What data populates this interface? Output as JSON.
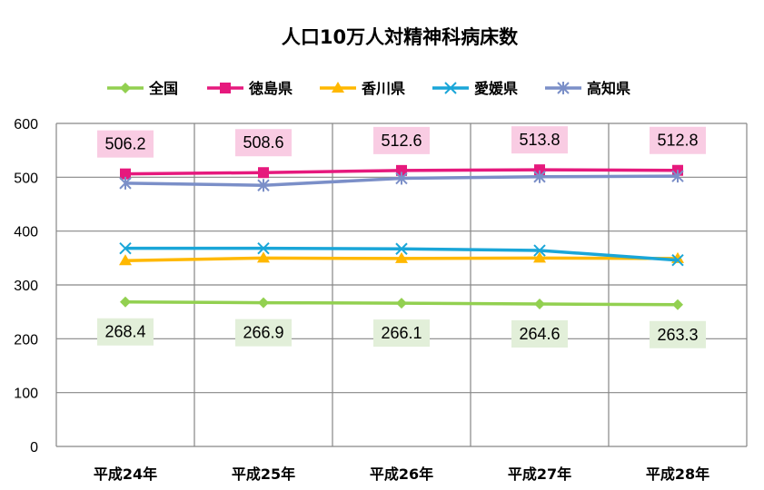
{
  "chart_data": {
    "type": "line",
    "title": "人口10万人対精神科病床数",
    "categories": [
      "平成24年",
      "平成25年",
      "平成26年",
      "平成27年",
      "平成28年"
    ],
    "ylim": [
      0,
      600
    ],
    "yticks": [
      0,
      100,
      200,
      300,
      400,
      500,
      600
    ],
    "grid": true,
    "legend_position": "top",
    "series": [
      {
        "name": "全国",
        "color": "#92d050",
        "marker": "diamond",
        "values": [
          268.4,
          266.9,
          266.1,
          264.6,
          263.3
        ],
        "labels": [
          "268.4",
          "266.9",
          "266.1",
          "264.6",
          "263.3"
        ],
        "label_bg": "#e2efd9"
      },
      {
        "name": "徳島県",
        "color": "#e6197d",
        "marker": "square",
        "values": [
          506.2,
          508.6,
          512.6,
          513.8,
          512.8
        ],
        "labels": [
          "506.2",
          "508.6",
          "512.6",
          "513.8",
          "512.8"
        ],
        "label_bg": "#f9cce3"
      },
      {
        "name": "香川県",
        "color": "#ffb800",
        "marker": "triangle",
        "values": [
          345,
          350,
          349,
          350,
          349
        ]
      },
      {
        "name": "愛媛県",
        "color": "#1aa6d8",
        "marker": "x",
        "values": [
          368,
          368,
          367,
          364,
          346
        ]
      },
      {
        "name": "高知県",
        "color": "#7b8fc8",
        "marker": "asterisk",
        "values": [
          489,
          485,
          498,
          501,
          502
        ]
      }
    ]
  }
}
